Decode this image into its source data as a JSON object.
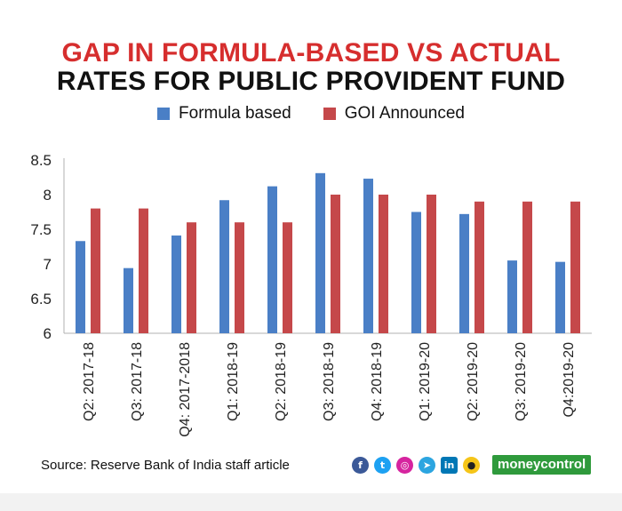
{
  "title_line1": "GAP IN FORMULA-BASED VS ACTUAL",
  "title_line2": "RATES FOR PUBLIC PROVIDENT FUND",
  "source": "Source: Reserve Bank of India staff article",
  "brand": "moneycontrol",
  "colors": {
    "formula": "#4a7fc6",
    "goi": "#c5484a",
    "title_red": "#d62e2e",
    "brand_green": "#2f9a3c"
  },
  "social_icons": [
    "facebook-icon",
    "twitter-icon",
    "instagram-icon",
    "telegram-icon",
    "linkedin-icon",
    "koo-icon"
  ],
  "chart_data": {
    "type": "bar",
    "categories": [
      "Q2: 2017-18",
      "Q3: 2017-18",
      "Q4: 2017-2018",
      "Q1: 2018-19",
      "Q2: 2018-19",
      "Q3: 2018-19",
      "Q4: 2018-19",
      "Q1: 2019-20",
      "Q2: 2019-20",
      "Q3: 2019-20",
      "Q4:2019-20"
    ],
    "series": [
      {
        "name": "Formula based",
        "values": [
          7.33,
          6.94,
          7.41,
          7.92,
          8.12,
          8.31,
          8.23,
          7.75,
          7.72,
          7.05,
          7.03
        ]
      },
      {
        "name": "GOI Announced",
        "values": [
          7.8,
          7.8,
          7.6,
          7.6,
          7.6,
          8.0,
          8.0,
          8.0,
          7.9,
          7.9,
          7.9
        ]
      }
    ],
    "yticks": [
      "6",
      "6.5",
      "7",
      "7.5",
      "8",
      "8.5"
    ],
    "ylim": [
      6,
      8.5
    ],
    "legend_position": "top-center",
    "grid": false
  }
}
